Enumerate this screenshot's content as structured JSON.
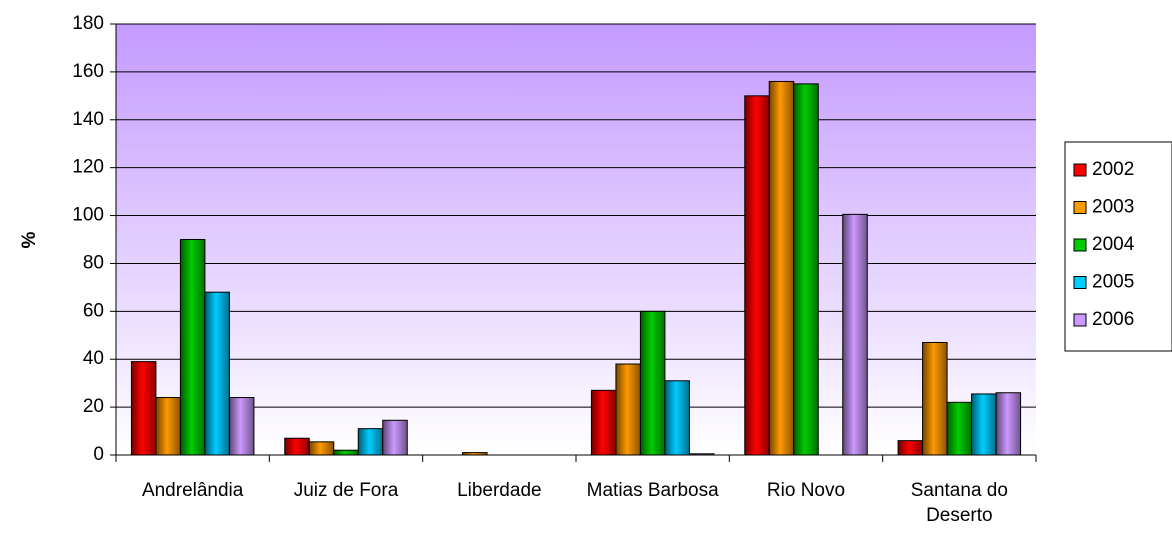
{
  "chart_data": {
    "type": "bar",
    "y_label": "%",
    "categories": [
      "Andrelândia",
      "Juiz de Fora",
      "Liberdade",
      "Matias Barbosa",
      "Rio Novo",
      "Santana do Deserto"
    ],
    "series": [
      {
        "name": "2002",
        "color": "#ff0000",
        "values": [
          39,
          7,
          0,
          27,
          150,
          6
        ]
      },
      {
        "name": "2003",
        "color": "#ff9900",
        "values": [
          24,
          5.5,
          1,
          38,
          156,
          47
        ]
      },
      {
        "name": "2004",
        "color": "#00cc00",
        "values": [
          90,
          2,
          0,
          60,
          155,
          22
        ]
      },
      {
        "name": "2005",
        "color": "#00ccff",
        "values": [
          68,
          11,
          0,
          31,
          0,
          25.5
        ]
      },
      {
        "name": "2006",
        "color": "#cc99ff",
        "values": [
          24,
          14.5,
          0,
          0.5,
          100.5,
          26
        ]
      }
    ],
    "ylim": [
      0,
      180
    ],
    "yticks": [
      0,
      20,
      40,
      60,
      80,
      100,
      120,
      140,
      160,
      180
    ],
    "grid": true,
    "legend": "right"
  }
}
